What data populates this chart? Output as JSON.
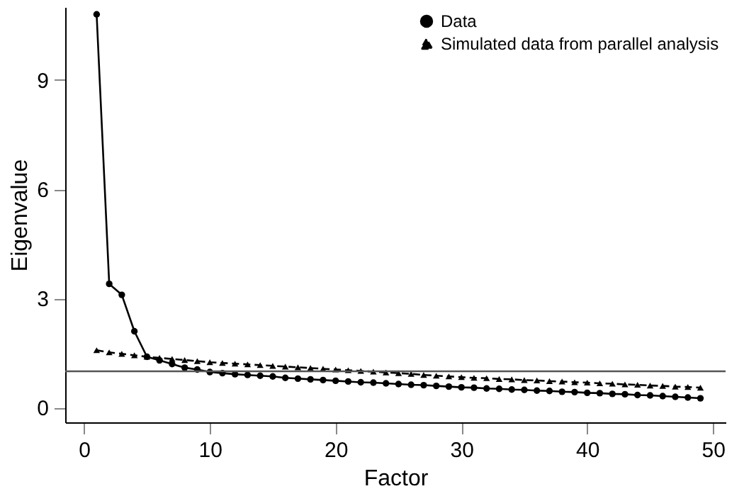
{
  "chart_data": {
    "type": "line",
    "xlabel": "Factor",
    "ylabel": "Eigenvalue",
    "x": [
      1,
      2,
      3,
      4,
      5,
      6,
      7,
      8,
      9,
      10,
      11,
      12,
      13,
      14,
      15,
      16,
      17,
      18,
      19,
      20,
      21,
      22,
      23,
      24,
      25,
      26,
      27,
      28,
      29,
      30,
      31,
      32,
      33,
      34,
      35,
      36,
      37,
      38,
      39,
      40,
      41,
      42,
      43,
      44,
      45,
      46,
      47,
      48,
      49
    ],
    "series": [
      {
        "name": "Data",
        "color": "#000000",
        "marker": "circle",
        "line_style": "solid",
        "values": [
          10.8,
          3.4,
          3.1,
          2.1,
          1.4,
          1.3,
          1.2,
          1.1,
          1.05,
          0.98,
          0.95,
          0.92,
          0.9,
          0.88,
          0.86,
          0.82,
          0.8,
          0.78,
          0.76,
          0.74,
          0.72,
          0.7,
          0.69,
          0.67,
          0.65,
          0.63,
          0.62,
          0.6,
          0.58,
          0.56,
          0.55,
          0.53,
          0.52,
          0.5,
          0.49,
          0.47,
          0.46,
          0.44,
          0.43,
          0.41,
          0.4,
          0.38,
          0.37,
          0.35,
          0.34,
          0.32,
          0.3,
          0.28,
          0.26
        ]
      },
      {
        "name": "Simulated data from parallel analysis",
        "color": "#000000",
        "marker": "triangle",
        "line_style": "dashed",
        "values": [
          1.58,
          1.52,
          1.48,
          1.44,
          1.4,
          1.37,
          1.34,
          1.31,
          1.28,
          1.25,
          1.23,
          1.21,
          1.19,
          1.17,
          1.15,
          1.13,
          1.11,
          1.09,
          1.07,
          1.05,
          1.03,
          1.01,
          0.99,
          0.97,
          0.95,
          0.93,
          0.9,
          0.88,
          0.86,
          0.84,
          0.82,
          0.81,
          0.79,
          0.78,
          0.76,
          0.75,
          0.73,
          0.72,
          0.7,
          0.69,
          0.67,
          0.66,
          0.64,
          0.63,
          0.61,
          0.6,
          0.58,
          0.57,
          0.55
        ]
      }
    ],
    "xlim": [
      -1.5,
      51
    ],
    "xticks": [
      0,
      10,
      20,
      30,
      40,
      50
    ],
    "ylim": [
      -0.4,
      11
    ],
    "yticks": [
      0,
      3,
      6,
      9
    ],
    "ref_lines": [
      {
        "axis": "y",
        "value": 1,
        "color": "#555555",
        "line_style": "solid"
      }
    ],
    "grid": false,
    "legend": "top right"
  }
}
